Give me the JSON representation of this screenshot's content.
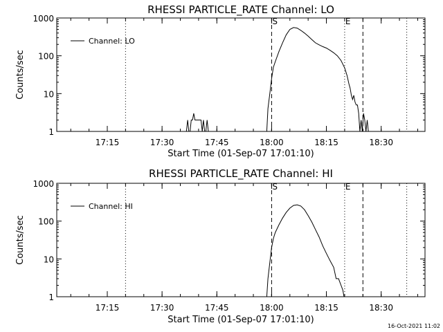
{
  "chart_data": [
    {
      "type": "line",
      "title": "RHESSI PARTICLE_RATE Channel: LO",
      "xlabel": "Start Time (01-Sep-07 17:01:10)",
      "ylabel": "Counts/sec",
      "yscale": "log",
      "ylim": [
        1,
        1000
      ],
      "xlim": [
        "17:01:10",
        "18:42:00"
      ],
      "x_ticks": [
        "17:15",
        "17:30",
        "17:45",
        "18:00",
        "18:15",
        "18:30"
      ],
      "y_ticks": [
        "1",
        "10",
        "100",
        "1000"
      ],
      "legend": "top-left",
      "grid": false,
      "series": [
        {
          "name": "Channel: LO",
          "x": [
            "17:36:40",
            "17:37:00",
            "17:37:20",
            "17:37:40",
            "17:38:00",
            "17:38:20",
            "17:38:40",
            "17:39:00",
            "17:39:20",
            "17:39:40",
            "17:40:00",
            "17:40:20",
            "17:40:40",
            "17:41:00",
            "17:41:20",
            "17:41:40",
            "17:42:00",
            "17:42:20",
            "17:42:40",
            "17:58:40",
            "17:59:00",
            "17:59:30",
            "18:00:00",
            "18:00:30",
            "18:01:00",
            "18:02:00",
            "18:03:00",
            "18:04:00",
            "18:05:00",
            "18:06:00",
            "18:07:00",
            "18:08:00",
            "18:09:00",
            "18:10:00",
            "18:11:00",
            "18:12:00",
            "18:13:00",
            "18:14:00",
            "18:15:00",
            "18:16:00",
            "18:17:00",
            "18:18:00",
            "18:19:00",
            "18:19:30",
            "18:20:00",
            "18:20:40",
            "18:21:10",
            "18:21:30",
            "18:21:50",
            "18:22:10",
            "18:22:30",
            "18:22:50",
            "18:23:10",
            "18:23:30",
            "18:23:50",
            "18:24:10",
            "18:24:30",
            "18:24:50",
            "18:25:10",
            "18:25:30",
            "18:25:50",
            "18:26:10",
            "18:26:30"
          ],
          "values": [
            1,
            2,
            1,
            1,
            2,
            2,
            3,
            2,
            2,
            2,
            2,
            2,
            2,
            1,
            2,
            1,
            1,
            2,
            1,
            1,
            4,
            10,
            25,
            50,
            70,
            130,
            220,
            360,
            500,
            560,
            540,
            470,
            400,
            330,
            270,
            220,
            195,
            175,
            160,
            140,
            120,
            100,
            75,
            60,
            48,
            30,
            18,
            14,
            9,
            7,
            9,
            6,
            5,
            5,
            3,
            1,
            2,
            1,
            3,
            2,
            1,
            2,
            1
          ]
        }
      ],
      "markers": [
        {
          "label": "S",
          "time": "18:00:00",
          "style": "dashed"
        },
        {
          "label": "E",
          "time": "18:20:00",
          "style": "dotted"
        }
      ],
      "extra_lines": [
        {
          "time": "17:20:00",
          "style": "dotted"
        },
        {
          "time": "18:25:00",
          "style": "dashed"
        },
        {
          "time": "18:37:00",
          "style": "dotted"
        }
      ]
    },
    {
      "type": "line",
      "title": "RHESSI PARTICLE_RATE Channel: HI",
      "xlabel": "Start Time (01-Sep-07 17:01:10)",
      "ylabel": "Counts/sec",
      "yscale": "log",
      "ylim": [
        1,
        1000
      ],
      "xlim": [
        "17:01:10",
        "18:42:00"
      ],
      "x_ticks": [
        "17:15",
        "17:30",
        "17:45",
        "18:00",
        "18:15",
        "18:30"
      ],
      "y_ticks": [
        "1",
        "10",
        "100",
        "1000"
      ],
      "legend": "top-left",
      "grid": false,
      "series": [
        {
          "name": "Channel: HI",
          "x": [
            "17:58:40",
            "17:59:00",
            "17:59:30",
            "18:00:00",
            "18:00:30",
            "18:01:00",
            "18:02:00",
            "18:03:00",
            "18:04:00",
            "18:05:00",
            "18:06:00",
            "18:07:00",
            "18:08:00",
            "18:09:00",
            "18:10:00",
            "18:11:00",
            "18:12:00",
            "18:13:00",
            "18:14:00",
            "18:15:00",
            "18:16:00",
            "18:17:00",
            "18:17:40",
            "18:18:20",
            "18:19:00",
            "18:19:30",
            "18:19:50"
          ],
          "values": [
            1,
            3,
            8,
            20,
            35,
            50,
            80,
            120,
            170,
            220,
            260,
            270,
            250,
            200,
            140,
            95,
            60,
            38,
            22,
            14,
            9,
            6,
            3,
            3,
            2,
            1.5,
            1
          ]
        }
      ],
      "markers": [
        {
          "label": "S",
          "time": "18:00:00",
          "style": "dashed"
        },
        {
          "label": "E",
          "time": "18:20:00",
          "style": "dotted"
        }
      ],
      "extra_lines": [
        {
          "time": "17:20:00",
          "style": "dotted"
        },
        {
          "time": "18:25:00",
          "style": "dashed"
        },
        {
          "time": "18:37:00",
          "style": "dotted"
        }
      ]
    }
  ],
  "footer": {
    "timestamp": "16-Oct-2021 11:02"
  }
}
